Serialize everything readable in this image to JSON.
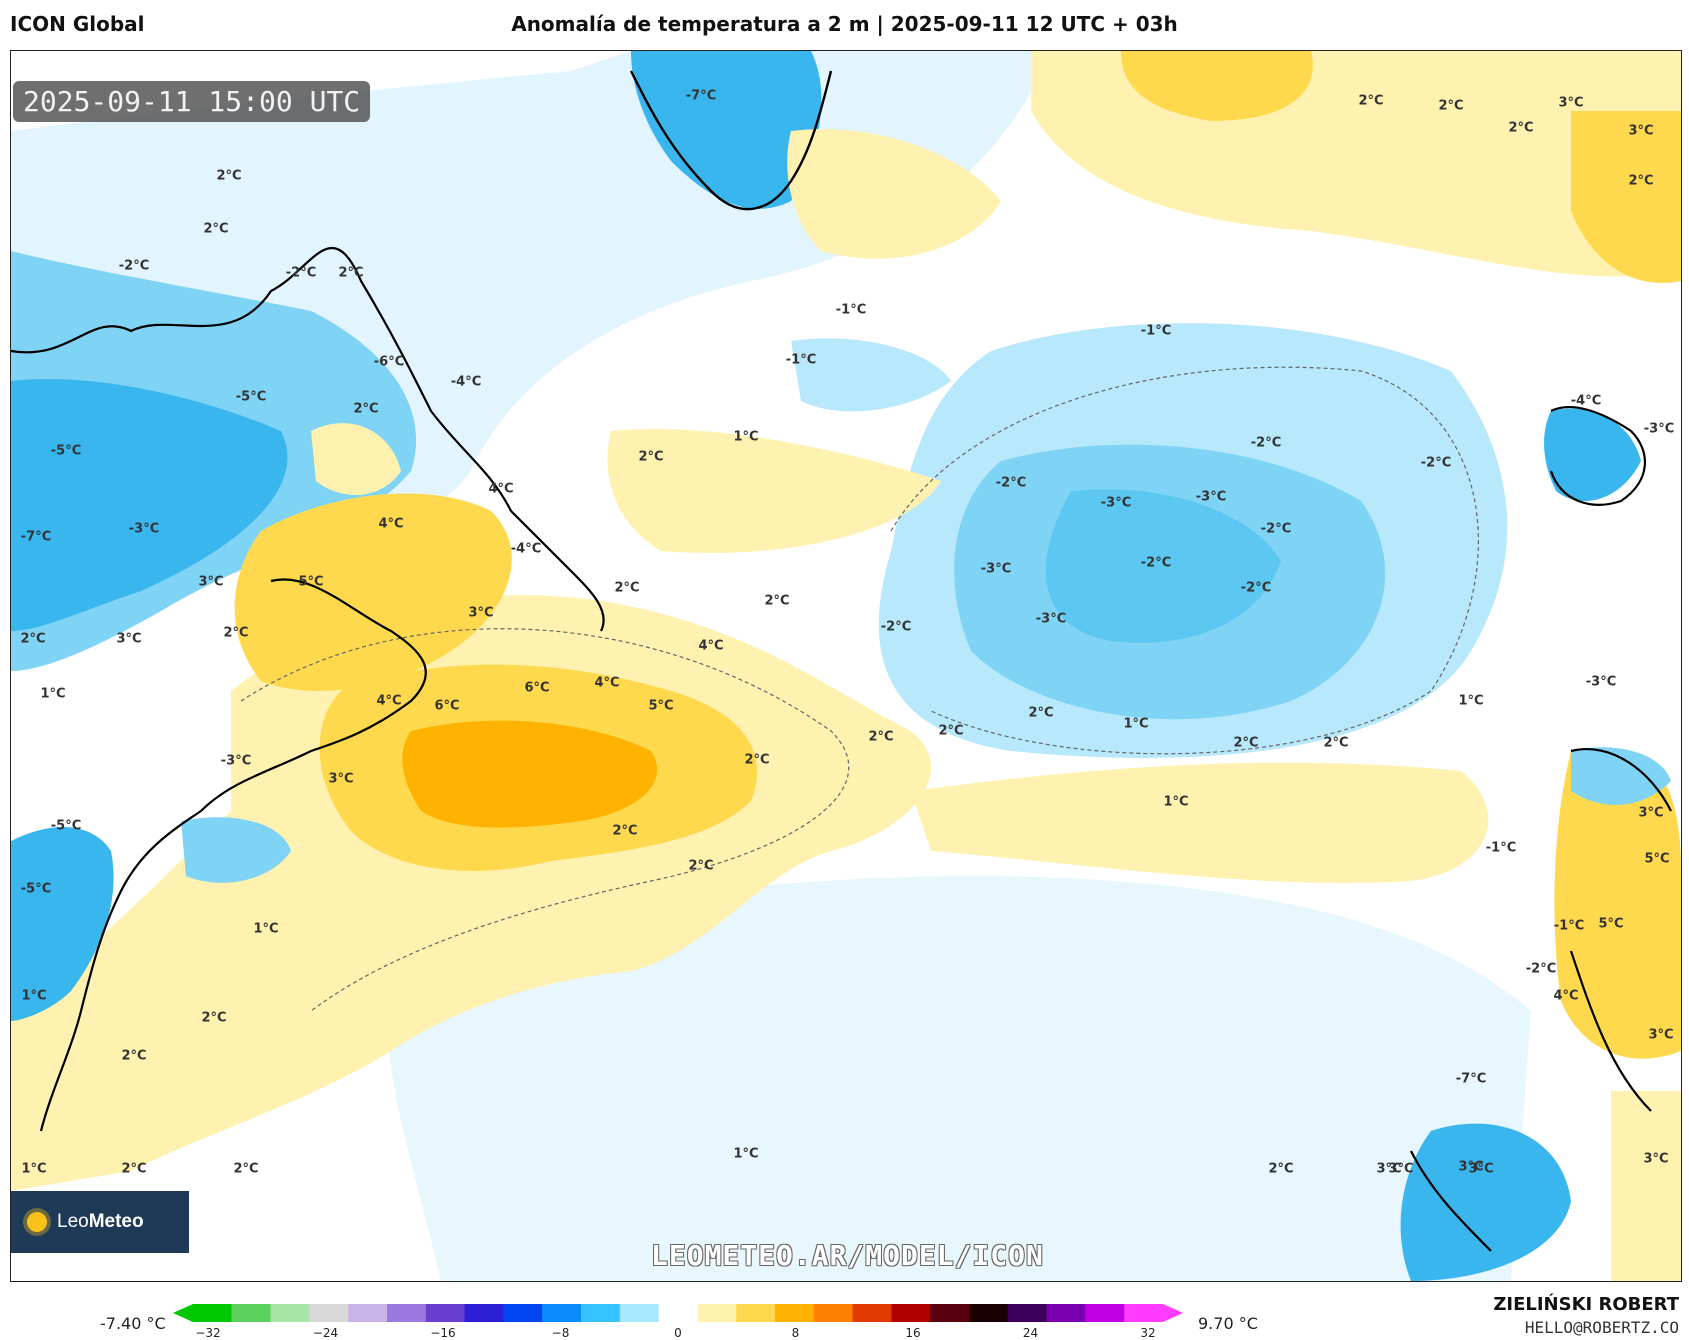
{
  "header": {
    "model": "ICON Global",
    "title": "Anomalía de temperatura a 2 m | 2025-09-11 12 UTC + 03h"
  },
  "map": {
    "valid_time": "2025-09-11 15:00 UTC",
    "watermark": "LEOMETEO.AR/MODEL/ICON",
    "logo_text_light": "Leo",
    "logo_text_bold": "Meteo",
    "contour_labels": [
      {
        "id": "lbl-greenland",
        "text": "-7°C"
      },
      {
        "id": "lbl-ice",
        "text": "2°C"
      },
      {
        "id": "lbl-n1",
        "text": "2°C"
      },
      {
        "id": "lbl-n2",
        "text": "2°C"
      },
      {
        "id": "lbl-n3",
        "text": "3°C"
      },
      {
        "id": "lbl-n4",
        "text": "3°C"
      },
      {
        "id": "lbl-n5",
        "text": "2°C"
      },
      {
        "id": "lbl-hud1",
        "text": "-2°C"
      },
      {
        "id": "lbl-hud2",
        "text": "2°C"
      },
      {
        "id": "lbl-hud3",
        "text": "2°C"
      },
      {
        "id": "lbl-lab1",
        "text": "-2°C"
      },
      {
        "id": "lbl-lab2",
        "text": "2°C"
      },
      {
        "id": "lbl-que1",
        "text": "-6°C"
      },
      {
        "id": "lbl-que2",
        "text": "-5°C"
      },
      {
        "id": "lbl-que3",
        "text": "-4°C"
      },
      {
        "id": "lbl-que4",
        "text": "2°C"
      },
      {
        "id": "lbl-can1",
        "text": "-5°C"
      },
      {
        "id": "lbl-can2",
        "text": "-7°C"
      },
      {
        "id": "lbl-can3",
        "text": "-3°C"
      },
      {
        "id": "lbl-nb1",
        "text": "4°C"
      },
      {
        "id": "lbl-nb2",
        "text": "4°C"
      },
      {
        "id": "lbl-nb3",
        "text": "5°C"
      },
      {
        "id": "lbl-nb4",
        "text": "3°C"
      },
      {
        "id": "lbl-nb5",
        "text": "2°C"
      },
      {
        "id": "lbl-nb6",
        "text": "3°C"
      },
      {
        "id": "lbl-nb7",
        "text": "2°C"
      },
      {
        "id": "lbl-nb8",
        "text": "1°C"
      },
      {
        "id": "lbl-nf1",
        "text": "-4°C"
      },
      {
        "id": "lbl-gs1",
        "text": "3°C"
      },
      {
        "id": "lbl-gs2",
        "text": "4°C"
      },
      {
        "id": "lbl-gs3",
        "text": "6°C"
      },
      {
        "id": "lbl-gs4",
        "text": "6°C"
      },
      {
        "id": "lbl-gs5",
        "text": "4°C"
      },
      {
        "id": "lbl-gs6",
        "text": "5°C"
      },
      {
        "id": "lbl-gs7",
        "text": "4°C"
      },
      {
        "id": "lbl-gs8",
        "text": "3°C"
      },
      {
        "id": "lbl-gs9",
        "text": "2°C"
      },
      {
        "id": "lbl-gs10",
        "text": "2°C"
      },
      {
        "id": "lbl-gs11",
        "text": "2°C"
      },
      {
        "id": "lbl-gs12",
        "text": "2°C"
      },
      {
        "id": "lbl-gs13",
        "text": "2°C"
      },
      {
        "id": "lbl-mid1",
        "text": "2°C"
      },
      {
        "id": "lbl-mid2",
        "text": "1°C"
      },
      {
        "id": "lbl-mid3",
        "text": "-1°C"
      },
      {
        "id": "lbl-mid4",
        "text": "-1°C"
      },
      {
        "id": "lbl-usa1",
        "text": "-3°C"
      },
      {
        "id": "lbl-usa2",
        "text": "-5°C"
      },
      {
        "id": "lbl-usa3",
        "text": "-5°C"
      },
      {
        "id": "lbl-s1",
        "text": "1°C"
      },
      {
        "id": "lbl-s2",
        "text": "1°C"
      },
      {
        "id": "lbl-s3",
        "text": "2°C"
      },
      {
        "id": "lbl-s4",
        "text": "2°C"
      },
      {
        "id": "lbl-s5",
        "text": "1°C"
      },
      {
        "id": "lbl-s6",
        "text": "2°C"
      },
      {
        "id": "lbl-s7",
        "text": "2°C"
      },
      {
        "id": "lbl-s8",
        "text": "1°C"
      },
      {
        "id": "lbl-e1",
        "text": "-1°C"
      },
      {
        "id": "lbl-e2",
        "text": "-2°C"
      },
      {
        "id": "lbl-e3",
        "text": "-2°C"
      },
      {
        "id": "lbl-e4",
        "text": "-3°C"
      },
      {
        "id": "lbl-e5",
        "text": "-3°C"
      },
      {
        "id": "lbl-e6",
        "text": "-2°C"
      },
      {
        "id": "lbl-e7",
        "text": "-3°C"
      },
      {
        "id": "lbl-e8",
        "text": "-2°C"
      },
      {
        "id": "lbl-e9",
        "text": "-2°C"
      },
      {
        "id": "lbl-e10",
        "text": "-3°C"
      },
      {
        "id": "lbl-e11",
        "text": "-2°C"
      },
      {
        "id": "lbl-e12",
        "text": "-2°C"
      },
      {
        "id": "lbl-az1",
        "text": "2°C"
      },
      {
        "id": "lbl-az2",
        "text": "1°C"
      },
      {
        "id": "lbl-az3",
        "text": "2°C"
      },
      {
        "id": "lbl-az4",
        "text": "2°C"
      },
      {
        "id": "lbl-az5",
        "text": "1°C"
      },
      {
        "id": "lbl-az6",
        "text": "1°C"
      },
      {
        "id": "lbl-eu1",
        "text": "2°C"
      },
      {
        "id": "lbl-eu2",
        "text": "2°C"
      },
      {
        "id": "lbl-eu3",
        "text": "3°C"
      },
      {
        "id": "lbl-eu4",
        "text": "3°C"
      },
      {
        "id": "lbl-eu5",
        "text": "2°C"
      },
      {
        "id": "lbl-eu6",
        "text": "-1°C"
      },
      {
        "id": "lbl-ire",
        "text": "-4°C"
      },
      {
        "id": "lbl-uk",
        "text": "-3°C"
      },
      {
        "id": "lbl-ib1",
        "text": "-3°C"
      },
      {
        "id": "lbl-ib2",
        "text": "3°C"
      },
      {
        "id": "lbl-ib3",
        "text": "5°C"
      },
      {
        "id": "lbl-ib4",
        "text": "-1°C"
      },
      {
        "id": "lbl-mor1",
        "text": "5°C"
      },
      {
        "id": "lbl-mor2",
        "text": "-2°C"
      },
      {
        "id": "lbl-mor3",
        "text": "4°C"
      },
      {
        "id": "lbl-mor4",
        "text": "3°C"
      },
      {
        "id": "lbl-sah1",
        "text": "-7°C"
      },
      {
        "id": "lbl-sah2",
        "text": "3°C"
      },
      {
        "id": "lbl-sah3",
        "text": "3°C"
      },
      {
        "id": "lbl-sah4",
        "text": "3°C"
      }
    ]
  },
  "colorbar": {
    "min_label": "-7.40 °C",
    "max_label": "9.70 °C",
    "ticks": [
      "−32",
      "−24",
      "−16",
      "−8",
      "0",
      "8",
      "16",
      "24",
      "32"
    ],
    "colors": [
      "#00c800",
      "#5cd25c",
      "#a8e6a8",
      "#d9d9d9",
      "#c8b4e6",
      "#9a78e0",
      "#6a3fd0",
      "#2b1fd6",
      "#0046f0",
      "#0a8cff",
      "#36c3ff",
      "#a8e8ff",
      "#ffffff",
      "#fff2b0",
      "#ffd94d",
      "#ffb300",
      "#ff7f00",
      "#e03a00",
      "#b00000",
      "#5a0010",
      "#1a0006",
      "#3a005a",
      "#7a00b0",
      "#c000e0",
      "#ff3cff"
    ]
  },
  "footer": {
    "author": "ZIELIŃSKI ROBERT",
    "email": "HELLO@ROBERTZ.CO"
  }
}
